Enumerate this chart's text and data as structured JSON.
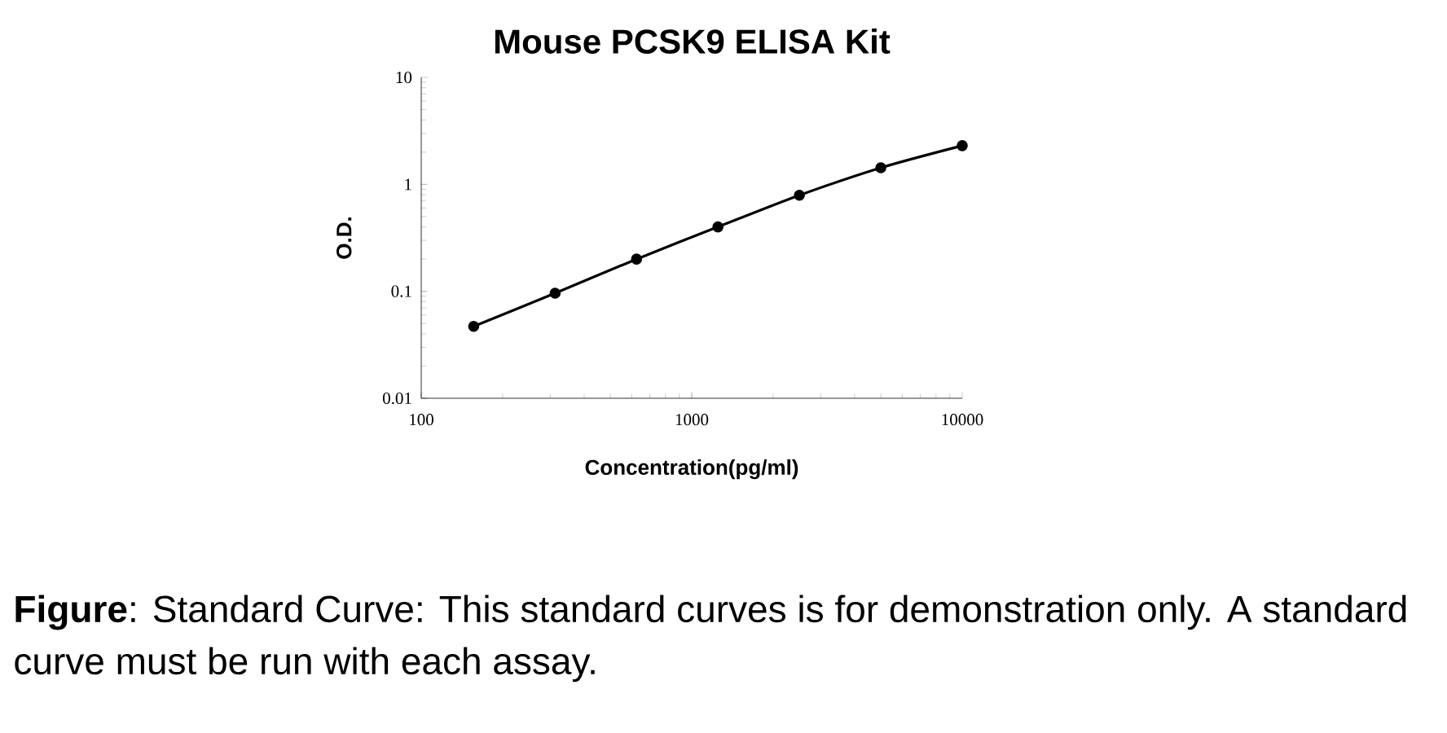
{
  "chart_data": {
    "type": "line",
    "title": "Mouse PCSK9 ELISA Kit",
    "xlabel": "Concentration(pg/ml)",
    "ylabel": "O.D.",
    "x": [
      156.25,
      312.5,
      625,
      1250,
      2500,
      5000,
      10000
    ],
    "series": [
      {
        "color": "#000000",
        "values": [
          0.047,
          0.096,
          0.2,
          0.4,
          0.79,
          1.43,
          2.3
        ]
      }
    ],
    "log": "xy",
    "xlim": [
      100,
      10000
    ],
    "ylim": [
      0.01,
      10
    ],
    "xticks": [
      100,
      1000,
      10000
    ],
    "yticks": [
      0.01,
      0.1,
      1,
      10
    ],
    "marker": "circle",
    "line_style": "solid",
    "grid": false,
    "annotations": [
      "**Figure**: Standard Curve: This standard curves is for demonstration only. A standard curve must be run with each assay."
    ]
  }
}
